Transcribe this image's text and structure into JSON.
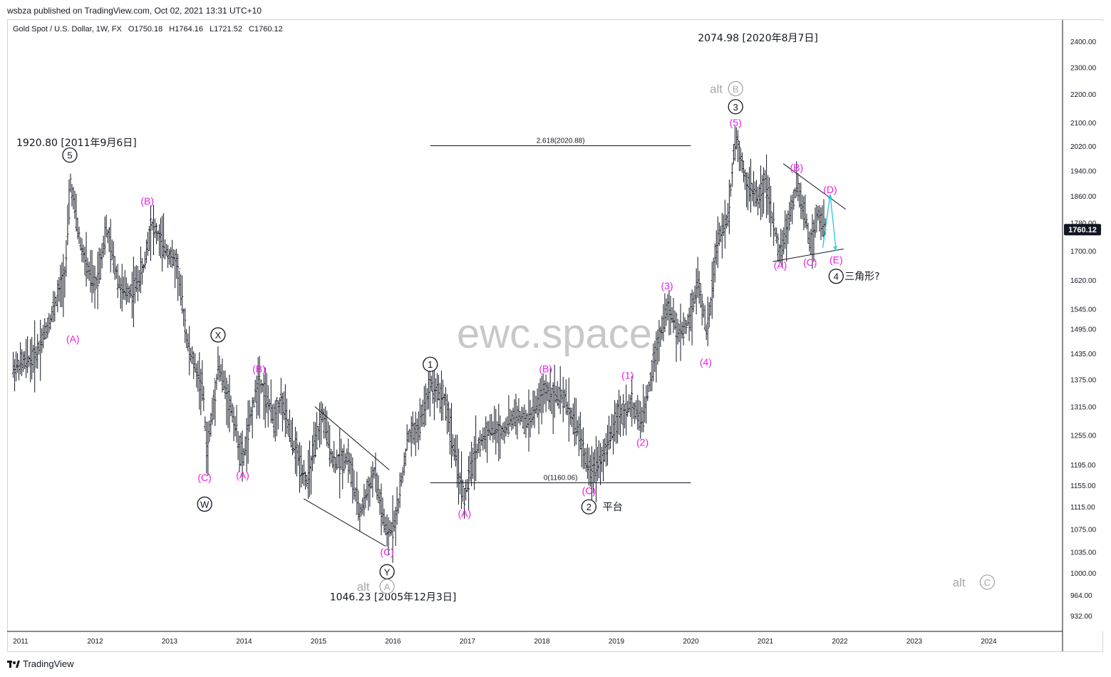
{
  "header": {
    "published": "wsbza published on TradingView.com, Oct 02, 2021 13:31 UTC+10"
  },
  "legend": {
    "symbol": "Gold Spot / U.S. Dollar, 1W, FX",
    "open": "O1750.18",
    "high": "H1764.16",
    "low": "L1721.52",
    "close": "C1760.12"
  },
  "footer": {
    "brand": "TradingView"
  },
  "watermark": "ewc.space",
  "colors": {
    "magenta": "#e91ee4",
    "black": "#131722",
    "grey": "#a8a8a8",
    "cyan": "#26c6da",
    "price_badge": "#131722",
    "watermark": "#c8c8c8"
  },
  "chart_data": {
    "type": "candlestick",
    "symbol": "Gold Spot / U.S. Dollar",
    "interval": "1W",
    "last_price": "1760.12",
    "y_scale": "log",
    "y_ticks": [
      "2400.00",
      "2300.00",
      "2200.00",
      "2100.00",
      "2020.00",
      "1940.00",
      "1860.00",
      "1780.00",
      "1700.00",
      "1620.00",
      "1545.00",
      "1495.00",
      "1435.00",
      "1375.00",
      "1315.00",
      "1255.00",
      "1195.00",
      "1155.00",
      "1115.00",
      "1075.00",
      "1035.00",
      "1000.00",
      "964.00",
      "932.00"
    ],
    "x_ticks": [
      "2011",
      "2012",
      "2013",
      "2014",
      "2015",
      "2016",
      "2017",
      "2018",
      "2019",
      "2020",
      "2021",
      "2022",
      "2023",
      "2024"
    ],
    "price_path": [
      [
        2010.9,
        1400
      ],
      [
        2011.2,
        1430
      ],
      [
        2011.4,
        1520
      ],
      [
        2011.6,
        1640
      ],
      [
        2011.67,
        1900
      ],
      [
        2011.8,
        1720
      ],
      [
        2011.9,
        1650
      ],
      [
        2012.0,
        1600
      ],
      [
        2012.15,
        1760
      ],
      [
        2012.35,
        1590
      ],
      [
        2012.5,
        1590
      ],
      [
        2012.65,
        1650
      ],
      [
        2012.75,
        1780
      ],
      [
        2012.9,
        1720
      ],
      [
        2013.1,
        1660
      ],
      [
        2013.25,
        1450
      ],
      [
        2013.45,
        1350
      ],
      [
        2013.5,
        1220
      ],
      [
        2013.6,
        1330
      ],
      [
        2013.65,
        1410
      ],
      [
        2013.85,
        1300
      ],
      [
        2013.98,
        1200
      ],
      [
        2014.1,
        1300
      ],
      [
        2014.2,
        1380
      ],
      [
        2014.4,
        1290
      ],
      [
        2014.5,
        1330
      ],
      [
        2014.65,
        1240
      ],
      [
        2014.85,
        1160
      ],
      [
        2015.05,
        1300
      ],
      [
        2015.2,
        1200
      ],
      [
        2015.4,
        1210
      ],
      [
        2015.55,
        1100
      ],
      [
        2015.75,
        1180
      ],
      [
        2015.92,
        1060
      ],
      [
        2016.05,
        1100
      ],
      [
        2016.2,
        1250
      ],
      [
        2016.35,
        1270
      ],
      [
        2016.5,
        1370
      ],
      [
        2016.7,
        1330
      ],
      [
        2016.85,
        1200
      ],
      [
        2016.96,
        1130
      ],
      [
        2017.1,
        1220
      ],
      [
        2017.3,
        1270
      ],
      [
        2017.45,
        1260
      ],
      [
        2017.65,
        1300
      ],
      [
        2017.8,
        1280
      ],
      [
        2018.05,
        1350
      ],
      [
        2018.3,
        1330
      ],
      [
        2018.5,
        1260
      ],
      [
        2018.63,
        1180
      ],
      [
        2018.85,
        1220
      ],
      [
        2019.0,
        1290
      ],
      [
        2019.2,
        1320
      ],
      [
        2019.35,
        1280
      ],
      [
        2019.5,
        1420
      ],
      [
        2019.68,
        1550
      ],
      [
        2019.85,
        1480
      ],
      [
        2019.98,
        1520
      ],
      [
        2020.1,
        1620
      ],
      [
        2020.22,
        1480
      ],
      [
        2020.35,
        1720
      ],
      [
        2020.5,
        1800
      ],
      [
        2020.6,
        2060
      ],
      [
        2020.75,
        1900
      ],
      [
        2020.9,
        1850
      ],
      [
        2021.0,
        1910
      ],
      [
        2021.1,
        1780
      ],
      [
        2021.2,
        1690
      ],
      [
        2021.33,
        1800
      ],
      [
        2021.42,
        1890
      ],
      [
        2021.55,
        1790
      ],
      [
        2021.6,
        1710
      ],
      [
        2021.7,
        1810
      ],
      [
        2021.8,
        1760
      ],
      [
        2021.82,
        1740
      ]
    ],
    "horizontal_levels": [
      {
        "label": "2.618(2020.88)",
        "value": 2020.88,
        "from": 2016.5,
        "to": 2020.0
      },
      {
        "label": "0(1160.06)",
        "value": 1160.06,
        "from": 2016.5,
        "to": 2020.0
      }
    ],
    "price_annotations": [
      {
        "text": "1920.80 [2011年9月6日]",
        "x": 2011.75,
        "y": 2020
      },
      {
        "text": "2074.98 [2020年8月7日]",
        "x": 2020.9,
        "y": 2400
      },
      {
        "text": "1046.23 [2005年12月3日]",
        "x": 2016.0,
        "y": 956
      }
    ],
    "wave_labels": [
      {
        "text": "5",
        "style": "circled-black",
        "x": 2011.66,
        "y": 1990
      },
      {
        "text": "(A)",
        "style": "magenta",
        "x": 2011.7,
        "y": 1470
      },
      {
        "text": "(B)",
        "style": "magenta",
        "x": 2012.7,
        "y": 1845
      },
      {
        "text": "X",
        "style": "circled-black",
        "x": 2013.65,
        "y": 1480
      },
      {
        "text": "(C)",
        "style": "magenta",
        "x": 2013.47,
        "y": 1170
      },
      {
        "text": "W",
        "style": "circled-black",
        "x": 2013.47,
        "y": 1120
      },
      {
        "text": "(B)",
        "style": "magenta",
        "x": 2014.2,
        "y": 1400
      },
      {
        "text": "(A)",
        "style": "magenta",
        "x": 2013.98,
        "y": 1175
      },
      {
        "text": "(C)",
        "style": "magenta",
        "x": 2015.92,
        "y": 1035
      },
      {
        "text": "Y",
        "style": "circled-black",
        "x": 2015.92,
        "y": 1002
      },
      {
        "text": "alt",
        "style": "grey",
        "x": 2015.6,
        "y": 978
      },
      {
        "text": "A",
        "style": "circled-grey",
        "x": 2015.92,
        "y": 978
      },
      {
        "text": "1",
        "style": "circled-black",
        "x": 2016.5,
        "y": 1410
      },
      {
        "text": "(A)",
        "style": "magenta",
        "x": 2016.96,
        "y": 1103
      },
      {
        "text": "(B)",
        "style": "magenta",
        "x": 2018.05,
        "y": 1400
      },
      {
        "text": "(C)",
        "style": "magenta",
        "x": 2018.63,
        "y": 1145
      },
      {
        "text": "2",
        "style": "circled-black",
        "x": 2018.63,
        "y": 1115
      },
      {
        "text": "平台",
        "style": "black-text",
        "x": 2018.95,
        "y": 1115
      },
      {
        "text": "(1)",
        "style": "magenta",
        "x": 2019.15,
        "y": 1385
      },
      {
        "text": "(2)",
        "style": "magenta",
        "x": 2019.35,
        "y": 1240
      },
      {
        "text": "(3)",
        "style": "magenta",
        "x": 2019.68,
        "y": 1605
      },
      {
        "text": "(4)",
        "style": "magenta",
        "x": 2020.2,
        "y": 1415
      },
      {
        "text": "(5)",
        "style": "magenta",
        "x": 2020.6,
        "y": 2100
      },
      {
        "text": "3",
        "style": "circled-black",
        "x": 2020.6,
        "y": 2155
      },
      {
        "text": "alt",
        "style": "grey",
        "x": 2020.34,
        "y": 2220
      },
      {
        "text": "B",
        "style": "circled-grey",
        "x": 2020.6,
        "y": 2220
      },
      {
        "text": "(B)",
        "style": "magenta",
        "x": 2021.42,
        "y": 1950
      },
      {
        "text": "(D)",
        "style": "magenta",
        "x": 2021.87,
        "y": 1880
      },
      {
        "text": "(A)",
        "style": "magenta",
        "x": 2021.2,
        "y": 1660
      },
      {
        "text": "(C)",
        "style": "magenta",
        "x": 2021.6,
        "y": 1668
      },
      {
        "text": "(E)",
        "style": "magenta",
        "x": 2021.95,
        "y": 1675
      },
      {
        "text": "4",
        "style": "circled-black",
        "x": 2021.95,
        "y": 1630
      },
      {
        "text": "三角形?",
        "style": "black-text",
        "x": 2022.3,
        "y": 1630
      },
      {
        "text": "alt",
        "style": "grey",
        "x": 2023.6,
        "y": 985
      },
      {
        "text": "C",
        "style": "circled-grey-partial",
        "x": 2023.98,
        "y": 985
      }
    ],
    "trendlines": [
      {
        "from": [
          2014.95,
          1315
        ],
        "to": [
          2015.95,
          1185
        ]
      },
      {
        "from": [
          2014.8,
          1130
        ],
        "to": [
          2015.9,
          1045
        ]
      },
      {
        "from": [
          2021.24,
          1962
        ],
        "to": [
          2022.08,
          1820
        ]
      },
      {
        "from": [
          2021.1,
          1670
        ],
        "to": [
          2022.05,
          1705
        ]
      }
    ],
    "arrows": [
      {
        "from": [
          2021.77,
          1708
        ],
        "to": [
          2021.87,
          1865
        ]
      },
      {
        "from": [
          2021.87,
          1865
        ],
        "to": [
          2021.95,
          1700
        ]
      }
    ]
  }
}
